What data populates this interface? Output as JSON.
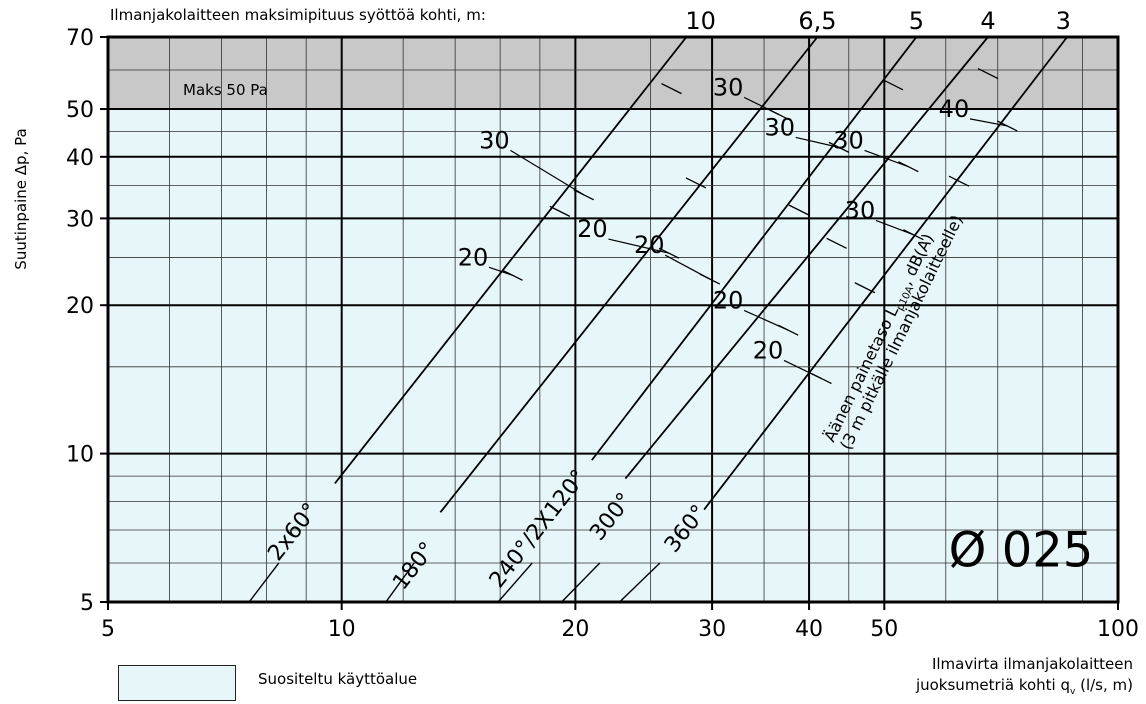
{
  "chart_data": {
    "type": "line",
    "axes": {
      "x": {
        "scale": "log",
        "range": [
          5,
          100
        ],
        "ticks": [
          "5",
          "10",
          "20",
          "30",
          "40",
          "50",
          "100"
        ],
        "tick_values": [
          5,
          10,
          20,
          30,
          40,
          50,
          100
        ]
      },
      "y": {
        "scale": "log",
        "range": [
          5,
          70
        ],
        "ticks": [
          "5",
          "10",
          "20",
          "30",
          "40",
          "50",
          "70"
        ],
        "tick_values": [
          5,
          10,
          20,
          30,
          40,
          50,
          70
        ]
      }
    },
    "xlabel_line1": "Ilmavirta ilmanjakolaitteen",
    "xlabel_line2_pre": "juoksumetriä kohti q",
    "xlabel_sub": "v",
    "xlabel_line2_post": " (l/s, m)",
    "ylabel": "Suutinpaine Δp, Pa",
    "top_caption": "Ilmanjakolaitteen maksimipituus syöttöä kohti, m:",
    "length_labels": [
      {
        "text": "10",
        "at": [
          29,
          70
        ]
      },
      {
        "text": "6,5",
        "at": [
          41,
          70
        ]
      },
      {
        "text": "5",
        "at": [
          55,
          70
        ]
      },
      {
        "text": "4",
        "at": [
          68,
          70
        ]
      },
      {
        "text": "3",
        "at": [
          85,
          70
        ]
      }
    ],
    "max_zone": {
      "label": "Maks 50 Pa",
      "from_y": 50,
      "to_y": 70
    },
    "sound_label_line1_pre": "Äänen painetaso L",
    "sound_label_sub": "p10A",
    "sound_label_line1_post": ", dB(A)",
    "sound_label_line2": "(3 m pitkälle ilmanjakolaitteelle)",
    "diameter_label": "Ø 025",
    "legend": {
      "label": "Suositeltu käyttöalue"
    },
    "series": [
      {
        "name": "2x60°",
        "solid": [
          [
            9.8,
            8.7
          ],
          [
            27.8,
            70
          ]
        ],
        "dashed": [
          [
            7.6,
            5
          ],
          [
            8.3,
            6
          ]
        ],
        "db": [
          {
            "text": "20",
            "at": [
              16.6,
              23
            ],
            "label_at": [
              15.3,
              24.1
            ]
          },
          {
            "text": "30",
            "at": [
              19.1,
              31
            ],
            "label_at": null
          }
        ]
      },
      {
        "name": "180°",
        "solid": [
          [
            13.4,
            7.6
          ],
          [
            41,
            70
          ]
        ],
        "dashed": [
          [
            11.4,
            5
          ],
          [
            12.4,
            6
          ]
        ],
        "db": [
          {
            "text": "20",
            "at": [
              26.4,
              25.5
            ],
            "label_at": [
              21.8,
              27.5
            ]
          },
          {
            "text": "30",
            "at": [
              26.6,
              55
            ],
            "label_at": null
          },
          {
            "text": "30",
            "at": [
              20.5,
              33.5
            ],
            "label_at": [
              16.3,
              41.6
            ]
          }
        ]
      },
      {
        "name": "240°/2X120°",
        "solid": [
          [
            21,
            9.7
          ],
          [
            55,
            70
          ]
        ],
        "dashed": [
          [
            15.9,
            5
          ],
          [
            17.6,
            6
          ]
        ],
        "db": [
          {
            "text": "20",
            "at": [
              29.8,
              22.6
            ],
            "label_at": [
              25.8,
              25.5
            ]
          },
          {
            "text": "30",
            "at": [
              36.6,
              48.7
            ],
            "label_at": [
              32.6,
              53.3
            ]
          },
          {
            "text": "30",
            "at": [
              28.6,
              35.4
            ],
            "label_at": null
          }
        ]
      },
      {
        "name": "300°",
        "solid": [
          [
            23.2,
            8.9
          ],
          [
            68,
            70
          ]
        ],
        "dashed": [
          [
            19.2,
            5
          ],
          [
            21.5,
            6
          ]
        ],
        "db": [
          {
            "text": "20",
            "at": [
              37.6,
              17.8
            ],
            "label_at": [
              32.6,
              19.7
            ]
          },
          {
            "text": "30",
            "at": [
              38.8,
              31.2
            ],
            "label_at": null
          },
          {
            "text": "30",
            "at": [
              43.7,
              41.8
            ],
            "label_at": [
              38.0,
              44.2
            ]
          },
          {
            "text": "30",
            "at": [
              51.3,
              56
            ],
            "label_at": null
          }
        ]
      },
      {
        "name": "360°",
        "solid": [
          [
            29.3,
            7.7
          ],
          [
            86,
            70
          ]
        ],
        "dashed": [
          [
            22.8,
            5
          ],
          [
            25.7,
            6
          ]
        ],
        "db": [
          {
            "text": "20",
            "at": [
              41.5,
              14.2
            ],
            "label_at": [
              36.7,
              15.6
            ]
          },
          {
            "text": "20",
            "at": [
              43.4,
              26.7
            ],
            "label_at": null
          },
          {
            "text": "20",
            "at": [
              47.2,
              21.7
            ],
            "label_at": null
          },
          {
            "text": "30",
            "at": [
              54.5,
              27.8
            ],
            "label_at": [
              48.2,
              30.0
            ]
          },
          {
            "text": "30",
            "at": [
              53.7,
              38.2
            ],
            "label_at": [
              46.6,
              41.6
            ]
          },
          {
            "text": "30",
            "at": [
              62.4,
              35.7
            ],
            "label_at": null
          },
          {
            "text": "40",
            "at": [
              72,
              46.2
            ],
            "label_at": [
              63.7,
              48.2
            ]
          },
          {
            "text": "40",
            "at": [
              68,
              59
            ],
            "label_at": null
          }
        ]
      }
    ]
  }
}
